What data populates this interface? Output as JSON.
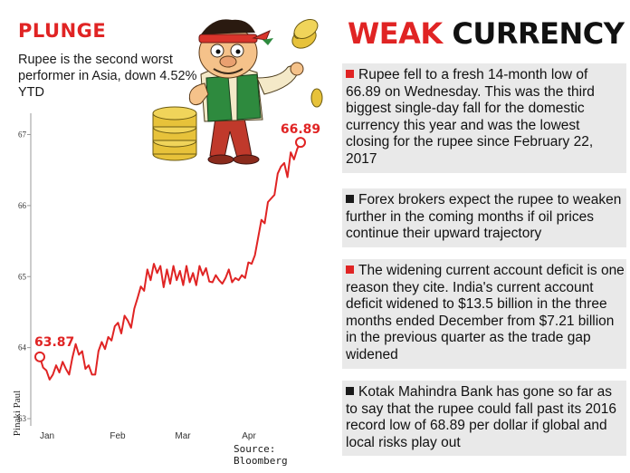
{
  "chart_data": {
    "type": "line",
    "title": "PLUNGE",
    "subtitle": "Rupee is the second worst performer in Asia, down 4.52% YTD",
    "x_ticks": [
      "Jan",
      "Feb",
      "Mar",
      "Apr"
    ],
    "y_ticks": [
      "63",
      "64",
      "65",
      "66",
      "67"
    ],
    "ylim": [
      63,
      67.3
    ],
    "grid": false,
    "start_label": "63.87",
    "end_label": "66.89",
    "source": "Source: Bloomberg",
    "series": [
      {
        "x": [
          0,
          1,
          2,
          3,
          4,
          5,
          6,
          7,
          8,
          9,
          10,
          11,
          12,
          13,
          14,
          15,
          16,
          17,
          18,
          19,
          20,
          21,
          22,
          23,
          24,
          25,
          26,
          27,
          28,
          29,
          30,
          31,
          32,
          33,
          34,
          35,
          36,
          37,
          38,
          39,
          40,
          41,
          42,
          43,
          44,
          45,
          46,
          47,
          48,
          49,
          50,
          51,
          52,
          53,
          54,
          55,
          56,
          57,
          58,
          59,
          60,
          61,
          62,
          63,
          64,
          65,
          66,
          67,
          68,
          69,
          70,
          71,
          72,
          73,
          74,
          75,
          76,
          77,
          78,
          79,
          80
        ],
        "values": [
          63.87,
          63.72,
          63.68,
          63.55,
          63.62,
          63.75,
          63.65,
          63.8,
          63.7,
          63.62,
          63.86,
          64.05,
          63.9,
          63.95,
          63.7,
          63.75,
          63.62,
          63.62,
          63.95,
          64.08,
          63.98,
          64.15,
          64.1,
          64.3,
          64.35,
          64.2,
          64.45,
          64.38,
          64.28,
          64.55,
          64.7,
          64.86,
          64.8,
          65.1,
          64.95,
          65.18,
          65.05,
          65.15,
          64.85,
          65.1,
          64.9,
          65.15,
          64.95,
          65.08,
          64.88,
          65.15,
          64.92,
          65.05,
          64.88,
          65.15,
          65.02,
          65.12,
          64.93,
          64.92,
          65.02,
          64.95,
          64.9,
          64.98,
          65.1,
          64.92,
          64.98,
          64.95,
          65.02,
          64.98,
          65.2,
          65.18,
          65.3,
          65.55,
          65.8,
          65.75,
          66.05,
          66.1,
          66.15,
          66.45,
          66.55,
          66.6,
          66.4,
          66.75,
          66.65,
          66.8,
          66.89
        ]
      }
    ]
  },
  "illustration": {
    "name": "cartoon-man-juggling-coins",
    "colors": {
      "gold": "#e7c23a",
      "vest": "#2e8a3e",
      "shirt": "#f4e9c8",
      "trousers": "#c0392b",
      "band": "#d9342b"
    }
  },
  "credit": "Pinaki Paul",
  "panel": {
    "headline_1": "WEAK",
    "headline_2": "CURRENCY",
    "bullets": [
      {
        "color": "red",
        "text": "Rupee fell to a fresh 14-month low of 66.89 on Wednesday. This was the third biggest single-day fall for the domestic currency this year and was the lowest closing for the rupee since February 22, 2017"
      },
      {
        "color": "dark",
        "text": "Forex brokers expect the rupee to weaken further in the coming months if oil prices continue their upward trajectory"
      },
      {
        "color": "red",
        "text": "The widening current account deficit is one reason they cite. India's current account deficit widened to $13.5 billion in the three months ended December from $7.21 billion in the previous quarter as the trade gap widened"
      },
      {
        "color": "dark",
        "text": "Kotak Mahindra Bank has gone so far as to say that the rupee could fall past its 2016 record low of 68.89 per dollar if global and local risks play out"
      }
    ]
  },
  "colors": {
    "accent_red": "#e02424",
    "line": "#e02424",
    "box_bg": "#e9e9e9",
    "text": "#111111"
  }
}
